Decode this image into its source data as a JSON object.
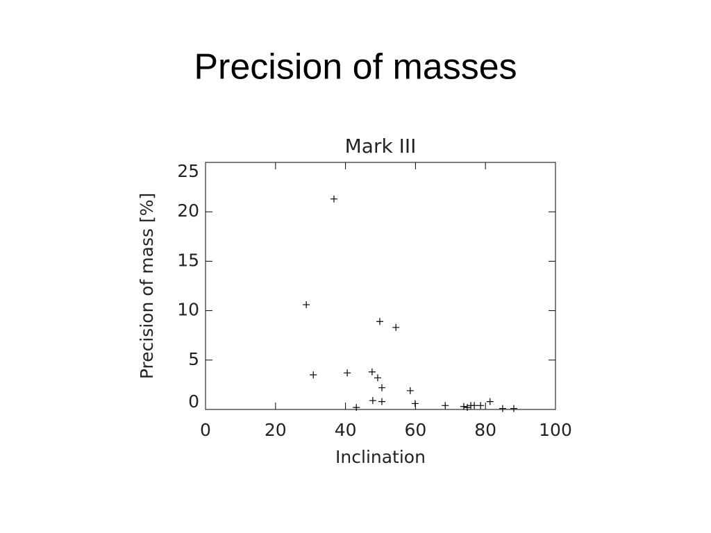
{
  "slide_title": "Precision of masses",
  "chart_data": {
    "type": "scatter",
    "title": "Mark III",
    "x_label": "Inclination",
    "y_label": "Precision of mass [%]",
    "x": [
      36.7,
      28.8,
      30.8,
      40.5,
      43.1,
      47.6,
      49.2,
      49.8,
      54.4,
      50.4,
      47.8,
      50.4,
      58.5,
      59.9,
      68.5,
      73.8,
      74.8,
      75.8,
      76.8,
      78.6,
      81.3,
      84.9,
      88.1
    ],
    "values": [
      21.3,
      10.6,
      3.5,
      3.7,
      0.2,
      3.8,
      3.2,
      8.9,
      8.3,
      2.2,
      0.9,
      0.8,
      1.9,
      0.6,
      0.4,
      0.3,
      0.2,
      0.4,
      0.4,
      0.4,
      0.8,
      0.1,
      0.1
    ],
    "color": "#000000",
    "xlim": [
      0,
      100
    ],
    "xticks": [
      0,
      20,
      40,
      60,
      80,
      100
    ],
    "ylim": [
      0,
      25
    ],
    "yticks": [
      0,
      5,
      10,
      15,
      20,
      25
    ]
  }
}
